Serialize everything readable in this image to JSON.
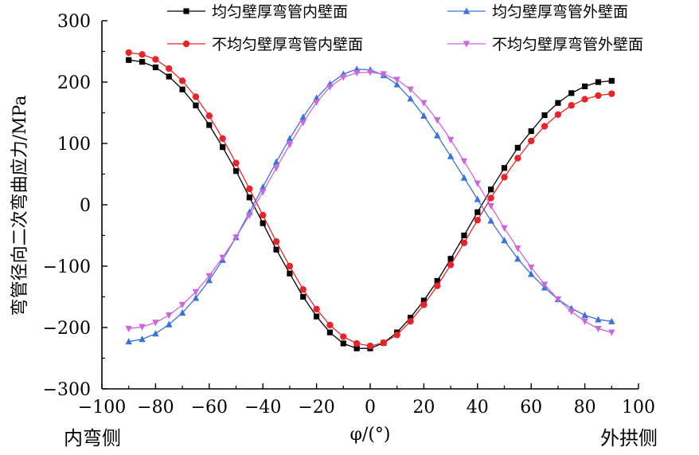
{
  "chart_data": {
    "type": "line",
    "title": "",
    "xlabel": "φ/(°)",
    "ylabel": "弯管径向二次弯曲应力/MPa",
    "xlim": [
      -100,
      100
    ],
    "ylim": [
      -300,
      300
    ],
    "x_ticks": [
      "−100",
      "−80",
      "−60",
      "−40",
      "−20",
      "0",
      "20",
      "40",
      "60",
      "80",
      "100"
    ],
    "y_ticks": [
      "300",
      "200",
      "100",
      "0",
      "−100",
      "−200",
      "−300"
    ],
    "left_label": "内弯侧",
    "right_label": "外拱侧",
    "legend_position": "top",
    "x": [
      -90,
      -85,
      -80,
      -75,
      -70,
      -65,
      -60,
      -55,
      -50,
      -45,
      -40,
      -35,
      -30,
      -25,
      -20,
      -15,
      -10,
      -5,
      0,
      5,
      10,
      15,
      20,
      25,
      30,
      35,
      40,
      45,
      50,
      55,
      60,
      65,
      70,
      75,
      80,
      85,
      90
    ],
    "series": [
      {
        "name": "均匀壁厚弯管内壁面",
        "color": "#000000",
        "marker": "square",
        "values": [
          236,
          233,
          224,
          209,
          188,
          162,
          130,
          94,
          55,
          12,
          -30,
          -73,
          -112,
          -150,
          -182,
          -208,
          -226,
          -234,
          -234,
          -225,
          -208,
          -184,
          -156,
          -124,
          -88,
          -50,
          -12,
          25,
          60,
          93,
          120,
          146,
          166,
          182,
          193,
          200,
          202
        ]
      },
      {
        "name": "均匀壁厚弯管外壁面",
        "color": "#3b73d9",
        "marker": "triangle-up",
        "values": [
          -223,
          -219,
          -210,
          -195,
          -176,
          -152,
          -123,
          -90,
          -53,
          -12,
          29,
          70,
          108,
          143,
          174,
          197,
          213,
          221,
          220,
          211,
          196,
          173,
          145,
          113,
          79,
          44,
          9,
          -26,
          -58,
          -88,
          -113,
          -135,
          -154,
          -169,
          -180,
          -187,
          -190
        ]
      },
      {
        "name": "不均匀壁厚弯管内壁面",
        "color": "#e8242b",
        "marker": "circle",
        "values": [
          248,
          245,
          237,
          222,
          202,
          176,
          145,
          108,
          68,
          26,
          -17,
          -60,
          -100,
          -138,
          -170,
          -196,
          -215,
          -226,
          -230,
          -225,
          -212,
          -190,
          -163,
          -132,
          -98,
          -62,
          -25,
          11,
          45,
          76,
          104,
          128,
          147,
          162,
          172,
          178,
          181
        ]
      },
      {
        "name": "不均匀壁厚弯管外壁面",
        "color": "#cc66dd",
        "marker": "triangle-down",
        "values": [
          -202,
          -199,
          -192,
          -180,
          -163,
          -142,
          -116,
          -86,
          -53,
          -17,
          21,
          60,
          98,
          134,
          167,
          192,
          208,
          215,
          216,
          213,
          204,
          188,
          166,
          138,
          106,
          71,
          35,
          -2,
          -38,
          -71,
          -102,
          -130,
          -154,
          -174,
          -190,
          -202,
          -208
        ]
      }
    ]
  }
}
